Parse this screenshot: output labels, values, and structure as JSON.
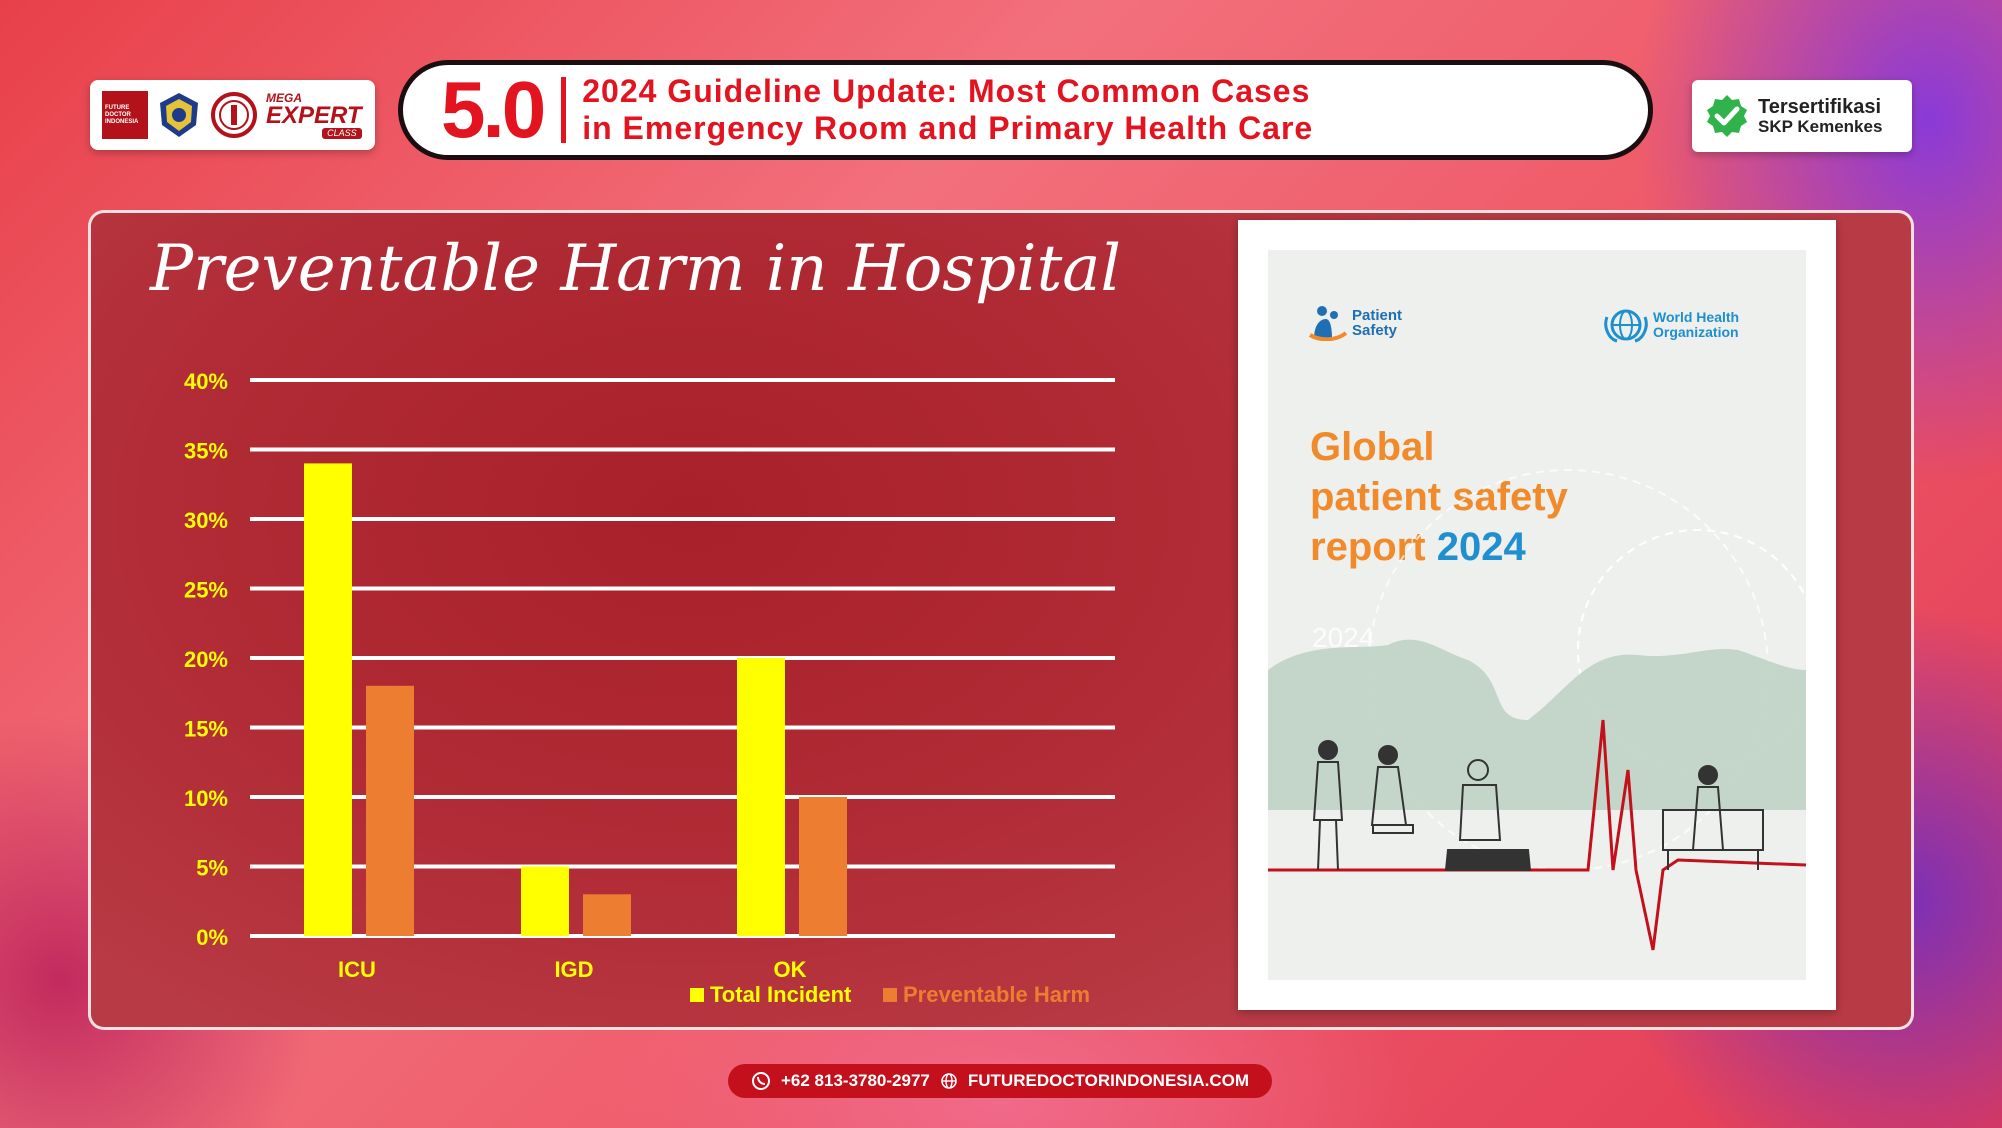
{
  "header": {
    "logos": {
      "fdi_text": "FUTURE DOCTOR INDONESIA",
      "mega_line1": "MEGA",
      "mega_line2": "EXPERT",
      "mega_line3": "CLASS"
    },
    "version": "5.0",
    "title_line1": "2024 Guideline Update: Most Common Cases",
    "title_line2": "in Emergency Room and Primary Health Care",
    "cert_line1": "Tersertifikasi",
    "cert_line2": "SKP Kemenkes"
  },
  "colors": {
    "total_incident": "#ffff00",
    "preventable_harm": "#ed7d31",
    "brand_red": "#e3131f",
    "tick_label": "#ffff00",
    "category_label": "#ffff00"
  },
  "chart_data": {
    "type": "bar",
    "title": "Preventable Harm in Hospital",
    "categories": [
      "ICU",
      "IGD",
      "OK"
    ],
    "series": [
      {
        "name": "Total Incident",
        "values": [
          34,
          5,
          20
        ]
      },
      {
        "name": "Preventable Harm",
        "values": [
          18,
          3,
          10
        ]
      }
    ],
    "ylim": [
      0,
      40
    ],
    "yticks": [
      "0%",
      "5%",
      "10%",
      "15%",
      "20%",
      "25%",
      "30%",
      "35%",
      "40%"
    ],
    "grid": true,
    "legend": "bottom"
  },
  "report": {
    "logo_left_l1": "Patient",
    "logo_left_l2": "Safety",
    "logo_right_l1": "World Health",
    "logo_right_l2": "Organization",
    "title_l1": "Global",
    "title_l2": "patient safety",
    "title_l3": "report",
    "title_year": "2024",
    "faint_year": "2024"
  },
  "footer": {
    "phone": "+62 813-3780-2977",
    "website": "FUTUREDOCTORINDONESIA.COM"
  }
}
